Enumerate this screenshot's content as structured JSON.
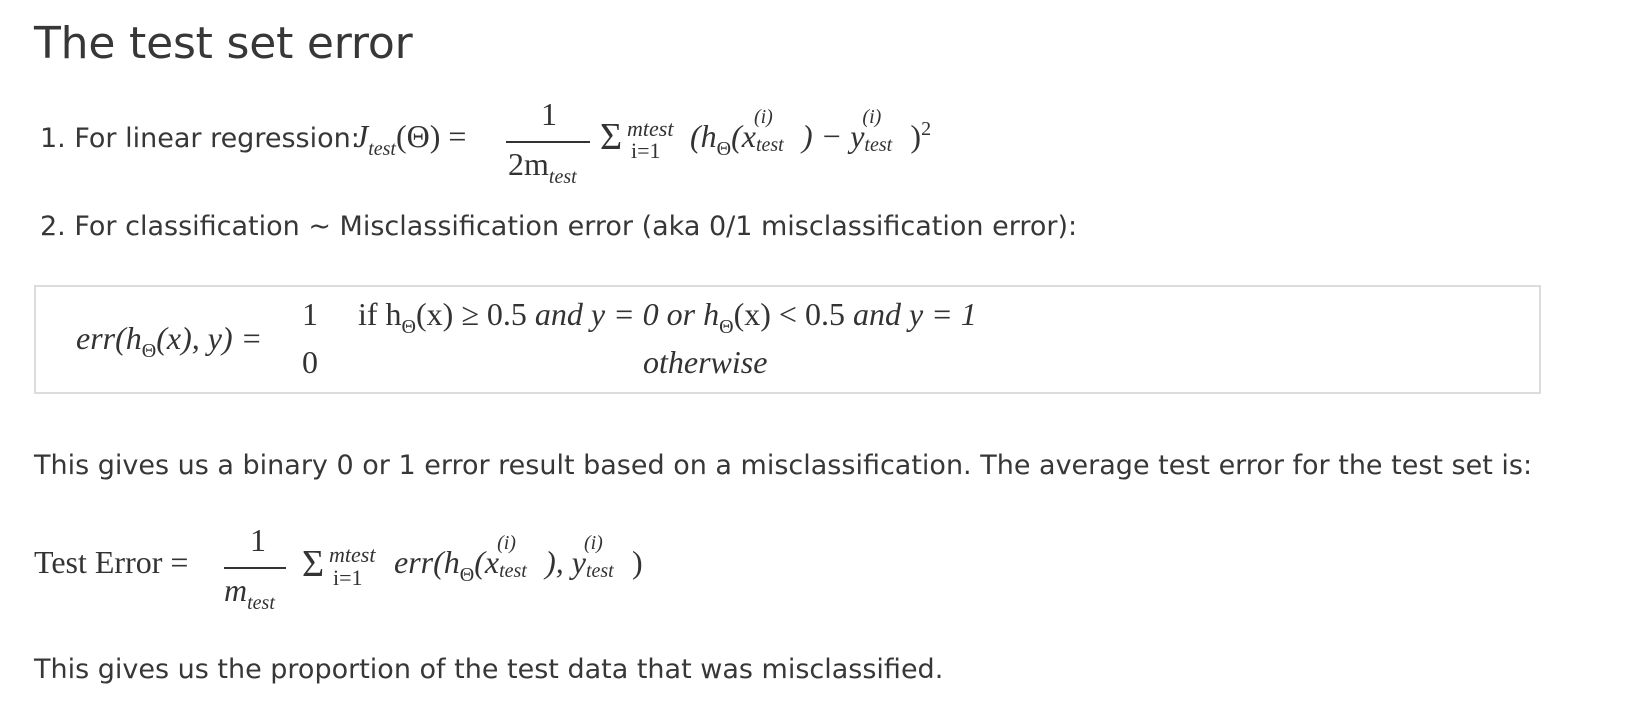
{
  "title": "The test set error",
  "item1": {
    "label": "1. For linear regression: ",
    "J": "J",
    "J_sub": "test",
    "theta_arg": "(Θ) =",
    "numerator": "1",
    "denominator": "2m",
    "denominator_sub": "test",
    "sigma": "Σ",
    "sum_upper": "mtest",
    "sum_lower": "i=1",
    "open": "(h",
    "h_sub": "Θ",
    "x_open": "(x",
    "idx": "(i)",
    "test": "test",
    "minus": ") − y",
    "close": ")",
    "square": "2"
  },
  "item2": {
    "label": "2. For classification ~ Misclassification error (aka 0/1 misclassification error):"
  },
  "err_box": {
    "lhs": "err(h",
    "lhs_sub": "Θ",
    "lhs_rest": "(x), y) =",
    "case1_value": "1",
    "case1_cond_if": "if h",
    "case1_sub": "Θ",
    "case1_cond_a": "(x) ≥ 0.5 ",
    "case1_and1": "and",
    "case1_cond_b": " y = 0 ",
    "case1_or": "or",
    "case1_cond_c": " h",
    "case1_sub2": "Θ",
    "case1_cond_d": "(x) < 0.5 ",
    "case1_and2": "and",
    "case1_cond_e": " y = 1",
    "case2_value": "0",
    "case2_cond": "otherwise"
  },
  "para1": "This gives us a binary 0 or 1 error result based on a misclassification. The average test error for the test set is:",
  "test_error": {
    "lhs": "Test Error =",
    "numerator": "1",
    "denominator": "m",
    "denominator_sub": "test",
    "sigma": "Σ",
    "sum_upper": "mtest",
    "sum_lower": "i=1",
    "body": "err(h",
    "h_sub": "Θ",
    "x_open": "(x",
    "idx": "(i)",
    "test": "test",
    "mid": "), y",
    "close": ")"
  },
  "para2": "This gives us the proportion of the test data that was misclassified."
}
